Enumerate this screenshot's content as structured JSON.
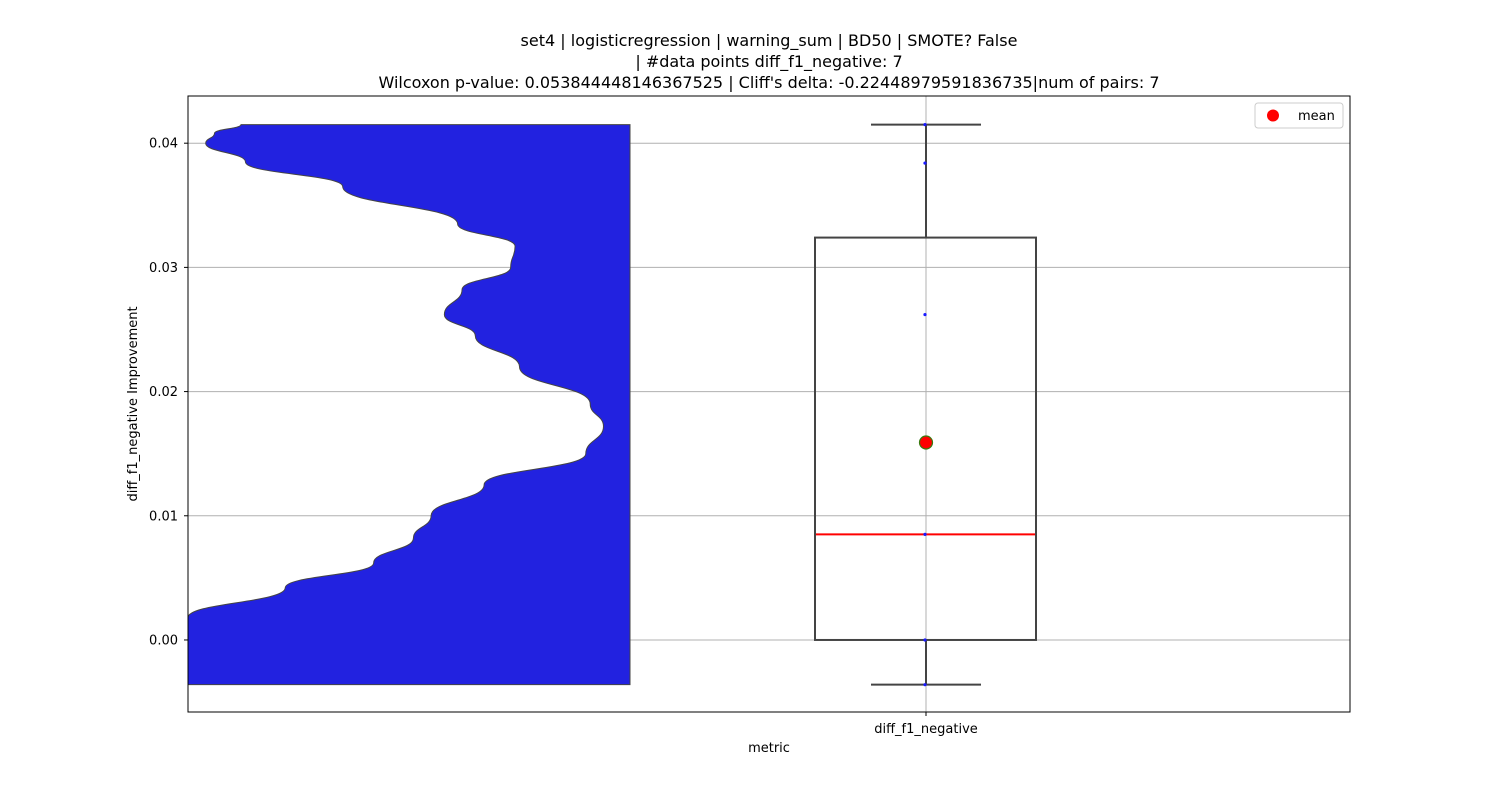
{
  "chart_data": {
    "type": "box",
    "title_lines": [
      "set4 | logisticregression | warning_sum | BD50 | SMOTE? False",
      "| #data points diff_f1_negative: 7",
      "Wilcoxon p-value: 0.053844448146367525 | Cliff's delta: -0.22448979591836735|num of pairs: 7"
    ],
    "xlabel": "metric",
    "ylabel": "diff_f1_negative Improvement",
    "categories": [
      "diff_f1_negative"
    ],
    "ylim": [
      -0.0058,
      0.0438
    ],
    "yticks": [
      0.0,
      0.01,
      0.02,
      0.03,
      0.04
    ],
    "ytick_labels": [
      "0.00",
      "0.01",
      "0.02",
      "0.03",
      "0.04"
    ],
    "grid": true,
    "legend": {
      "position": "top-right",
      "entries": [
        "mean"
      ]
    },
    "points": [
      -0.0036,
      0.0,
      0.0085,
      0.0262,
      0.0384,
      0.0415
    ],
    "box": {
      "min": -0.0036,
      "q1": 0.0,
      "median": 0.0085,
      "q3": 0.0324,
      "max": 0.0415,
      "mean": 0.0159
    },
    "violin_profile": [
      [
        -0.0036,
        1.0
      ],
      [
        -0.002,
        1.0
      ],
      [
        0.0018,
        1.0
      ],
      [
        0.0042,
        0.78
      ],
      [
        0.0062,
        0.58
      ],
      [
        0.0082,
        0.49
      ],
      [
        0.01,
        0.45
      ],
      [
        0.0125,
        0.33
      ],
      [
        0.015,
        0.1
      ],
      [
        0.0172,
        0.06
      ],
      [
        0.019,
        0.09
      ],
      [
        0.022,
        0.25
      ],
      [
        0.0245,
        0.35
      ],
      [
        0.0262,
        0.42
      ],
      [
        0.0282,
        0.38
      ],
      [
        0.03,
        0.27
      ],
      [
        0.0317,
        0.26
      ],
      [
        0.0335,
        0.39
      ],
      [
        0.0365,
        0.65
      ],
      [
        0.0385,
        0.87
      ],
      [
        0.04,
        0.96
      ],
      [
        0.0408,
        0.94
      ],
      [
        0.0415,
        0.88
      ]
    ],
    "colors": {
      "violin": "#2222e0",
      "median": "#ff0000",
      "mean": "#ff0000",
      "mean_edge": "#3a7a10",
      "box": "#444444",
      "point": "#1a1aff",
      "grid": "#b0b0b0"
    }
  }
}
